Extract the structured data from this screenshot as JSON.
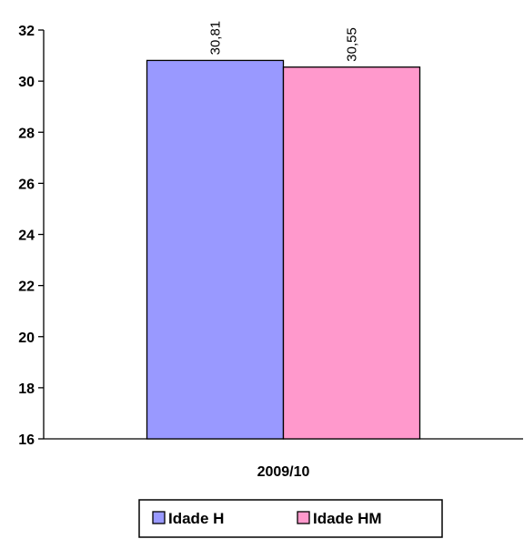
{
  "chart_data": {
    "type": "bar",
    "categories": [
      "2009/10"
    ],
    "series": [
      {
        "name": "Idade H",
        "values": [
          30.81
        ],
        "color": "#9999ff"
      },
      {
        "name": "Idade HM",
        "values": [
          30.55
        ],
        "color": "#ff99cc"
      }
    ],
    "data_labels": [
      "30,81",
      "30,55"
    ],
    "ylim": [
      16,
      32
    ],
    "yticks": [
      16,
      18,
      20,
      22,
      24,
      26,
      28,
      30,
      32
    ],
    "grid": false,
    "legend_position": "bottom"
  }
}
